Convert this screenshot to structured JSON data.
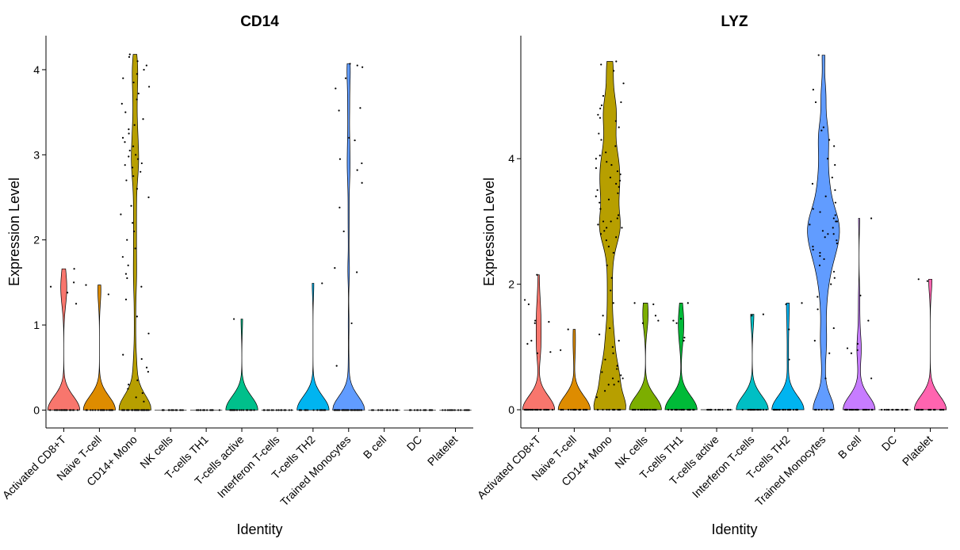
{
  "chart_data": [
    {
      "type": "violin",
      "title": "CD14",
      "x_label": "Identity",
      "y_label": "Expression Level",
      "categories": [
        "Activated CD8+T",
        "Naive T-cell",
        "CD14+ Mono",
        "NK cells",
        "T-cells TH1",
        "T-cells active",
        "Interferon T-cells",
        "T-cells TH2",
        "Trained Monocytes",
        "B cell",
        "DC",
        "Platelet"
      ],
      "colors": [
        "#F8766D",
        "#DE8C00",
        "#B79F00",
        "#7CAE00",
        "#00BA38",
        "#00C08B",
        "#00BFC4",
        "#00B4F0",
        "#619CFF",
        "#C77CFF",
        "#F564E3",
        "#FF64B0"
      ],
      "ylim": [
        -0.21,
        4.4
      ],
      "yticks": [
        0,
        1,
        2,
        3,
        4
      ],
      "points": [
        [
          0,
          0,
          0,
          0,
          0,
          0,
          0,
          0,
          0,
          0,
          0,
          0,
          0,
          0,
          0,
          0,
          0,
          0,
          0,
          0,
          1.66,
          1.5,
          1.45,
          1.38,
          1.25
        ],
        [
          0,
          0,
          0,
          0,
          0,
          0,
          0,
          0,
          0,
          0,
          0,
          0,
          0,
          0,
          0,
          0,
          0,
          0,
          0,
          0,
          1.47,
          1.36
        ],
        [
          0,
          0,
          0,
          0,
          0,
          0,
          0,
          0,
          0,
          0,
          0,
          0,
          0,
          0,
          0,
          0,
          0,
          0,
          0,
          0,
          0,
          0,
          0,
          0,
          0,
          0,
          0,
          0,
          0,
          0,
          0,
          0,
          0,
          0,
          0,
          0,
          0,
          0,
          0,
          0,
          0.1,
          0.15,
          0.2,
          0.25,
          0.3,
          0.35,
          0.45,
          0.5,
          0.6,
          0.65,
          0.9,
          1.1,
          1.3,
          1.45,
          1.55,
          1.6,
          1.7,
          1.8,
          1.9,
          2.0,
          2.1,
          2.2,
          2.3,
          2.4,
          2.5,
          2.6,
          2.7,
          2.75,
          2.8,
          2.85,
          2.88,
          2.9,
          2.95,
          2.98,
          3.0,
          3.05,
          3.1,
          3.15,
          3.2,
          3.25,
          3.3,
          3.35,
          3.42,
          3.5,
          3.6,
          3.65,
          3.72,
          3.8,
          3.85,
          3.9,
          3.95,
          4.0,
          4.05,
          4.1,
          4.15,
          4.18
        ],
        [
          0,
          0,
          0,
          0,
          0,
          0,
          0,
          0,
          0,
          0,
          0,
          0,
          0,
          0,
          0,
          0
        ],
        [
          0,
          0,
          0,
          0,
          0,
          0,
          0,
          0,
          0,
          0,
          0,
          0,
          0,
          0,
          0,
          0
        ],
        [
          0,
          0,
          0,
          0,
          0,
          0,
          0,
          0,
          0,
          0,
          0,
          0,
          0,
          0,
          0,
          0,
          0,
          0,
          0,
          0,
          1.07
        ],
        [
          0,
          0,
          0,
          0,
          0,
          0,
          0,
          0,
          0,
          0,
          0,
          0,
          0,
          0,
          0,
          0
        ],
        [
          0,
          0,
          0,
          0,
          0,
          0,
          0,
          0,
          0,
          0,
          0,
          0,
          0,
          0,
          0,
          0,
          0,
          0,
          0,
          0,
          1.49
        ],
        [
          0,
          0,
          0,
          0,
          0,
          0,
          0,
          0,
          0,
          0,
          0,
          0,
          0,
          0,
          0,
          0,
          0,
          0,
          0,
          0,
          0,
          0,
          0,
          0,
          0,
          0,
          0,
          0,
          0,
          0,
          0,
          0,
          0,
          0,
          0,
          0,
          0,
          0,
          0,
          0,
          4.07,
          4.05,
          4.03,
          3.9,
          3.78,
          3.55,
          3.52,
          3.2,
          3.17,
          2.95,
          2.9,
          2.82,
          2.67,
          2.38,
          2.1,
          1.67,
          1.62,
          1.02,
          0.52
        ],
        [
          0,
          0,
          0,
          0,
          0,
          0,
          0,
          0,
          0,
          0,
          0,
          0,
          0,
          0,
          0,
          0
        ],
        [
          0,
          0,
          0,
          0,
          0,
          0,
          0,
          0,
          0,
          0,
          0,
          0,
          0,
          0,
          0,
          0
        ],
        [
          0,
          0,
          0,
          0,
          0,
          0,
          0,
          0,
          0,
          0,
          0,
          0,
          0,
          0,
          0,
          0
        ]
      ]
    },
    {
      "type": "violin",
      "title": "LYZ",
      "x_label": "Identity",
      "y_label": "Expression Level",
      "categories": [
        "Activated CD8+T",
        "Naive T-cell",
        "CD14+ Mono",
        "NK cells",
        "T-cells TH1",
        "T-cells active",
        "Interferon T-cells",
        "T-cells TH2",
        "Trained Monocytes",
        "B cell",
        "DC",
        "Platelet"
      ],
      "colors": [
        "#F8766D",
        "#DE8C00",
        "#B79F00",
        "#7CAE00",
        "#00BA38",
        "#00C08B",
        "#00BFC4",
        "#00B4F0",
        "#619CFF",
        "#C77CFF",
        "#F564E3",
        "#FF64B0"
      ],
      "ylim": [
        -0.29,
        5.96
      ],
      "yticks": [
        0,
        2,
        4
      ],
      "points": [
        [
          0,
          0,
          0,
          0,
          0,
          0,
          0,
          0,
          0,
          0,
          0,
          0,
          0,
          0,
          0,
          0,
          0,
          0,
          0,
          0,
          0,
          0,
          0,
          0,
          0,
          0,
          0,
          0,
          0,
          0,
          2.15,
          1.75,
          1.68,
          1.42,
          1.4,
          1.38,
          1.1,
          1.05,
          0.92,
          0.9
        ],
        [
          0,
          0,
          0,
          0,
          0,
          0,
          0,
          0,
          0,
          0,
          0,
          0,
          0,
          0,
          0,
          0,
          0,
          0,
          0,
          0,
          1.28,
          0.95
        ],
        [
          0,
          0,
          0,
          0,
          0,
          0,
          0,
          0,
          0,
          0,
          0,
          0,
          0,
          0,
          0,
          0.2,
          0.3,
          0.4,
          0.4,
          0.45,
          0.5,
          0.5,
          0.55,
          0.6,
          0.65,
          0.7,
          0.8,
          0.9,
          1.0,
          1.1,
          1.2,
          1.3,
          1.5,
          1.7,
          1.9,
          2.1,
          2.3,
          2.5,
          2.6,
          2.7,
          2.75,
          2.8,
          2.85,
          2.9,
          2.9,
          2.95,
          3.0,
          3.0,
          3.05,
          3.1,
          3.2,
          3.3,
          3.35,
          3.4,
          3.45,
          3.5,
          3.55,
          3.6,
          3.65,
          3.7,
          3.75,
          3.8,
          3.85,
          3.9,
          3.95,
          4.0,
          4.05,
          4.1,
          4.2,
          4.3,
          4.4,
          4.5,
          4.6,
          4.65,
          4.7,
          4.8,
          4.85,
          4.9,
          5.0,
          5.2,
          5.4,
          5.5,
          5.55
        ],
        [
          0,
          0,
          0,
          0,
          0,
          0,
          0,
          0,
          0,
          0,
          0,
          0,
          0,
          0,
          0,
          0,
          0,
          0,
          0,
          0,
          0,
          0,
          0,
          0,
          0,
          1.7,
          1.68,
          1.5,
          1.42,
          1.38
        ],
        [
          0,
          0,
          0,
          0,
          0,
          0,
          0,
          0,
          0,
          0,
          0,
          0,
          0,
          0,
          0,
          0,
          0,
          0,
          0,
          0,
          0,
          0,
          0,
          0,
          0,
          1.7,
          1.45,
          1.42,
          1.38,
          1.15,
          1.1
        ],
        [
          0,
          0,
          0,
          0,
          0,
          0,
          0,
          0,
          0,
          0,
          0,
          0,
          0,
          0,
          0,
          0
        ],
        [
          0,
          0,
          0,
          0,
          0,
          0,
          0,
          0,
          0,
          0,
          0,
          0,
          0,
          0,
          0,
          0,
          0,
          0,
          0,
          0,
          1.52,
          1.5
        ],
        [
          0,
          0,
          0,
          0,
          0,
          0,
          0,
          0,
          0,
          0,
          0,
          0,
          0,
          0,
          0,
          0,
          0,
          0,
          0,
          0,
          0,
          0,
          0,
          0,
          0,
          1.7,
          1.68,
          1.28,
          0.8
        ],
        [
          0,
          0,
          0,
          0,
          0,
          0,
          0,
          0,
          0.5,
          0.9,
          1.1,
          1.3,
          1.6,
          1.8,
          2.0,
          2.1,
          2.2,
          2.3,
          2.4,
          2.45,
          2.5,
          2.55,
          2.6,
          2.65,
          2.7,
          2.75,
          2.8,
          2.8,
          2.85,
          2.9,
          2.95,
          3.0,
          3.0,
          3.05,
          3.1,
          3.15,
          3.2,
          3.3,
          3.4,
          3.5,
          3.6,
          3.7,
          3.9,
          4.0,
          4.2,
          4.3,
          4.45,
          4.5,
          4.9,
          5.1,
          5.65
        ],
        [
          0,
          0,
          0,
          0,
          0,
          0,
          0,
          0,
          0,
          0,
          0,
          0,
          0,
          0,
          0,
          0,
          0,
          0,
          0,
          0,
          0,
          0,
          0,
          0,
          0,
          0,
          0,
          0,
          0,
          0,
          3.05,
          1.82,
          1.42,
          1.05,
          0.98,
          0.95,
          0.9,
          0.5
        ],
        [
          0,
          0,
          0,
          0,
          0,
          0,
          0,
          0,
          0,
          0,
          0,
          0,
          0,
          0,
          0,
          0
        ],
        [
          0,
          0,
          0,
          0,
          0,
          0,
          0,
          0,
          0,
          0,
          0,
          0,
          0,
          0,
          0,
          0,
          0,
          0,
          0,
          0,
          2.08,
          2.05
        ]
      ]
    }
  ]
}
